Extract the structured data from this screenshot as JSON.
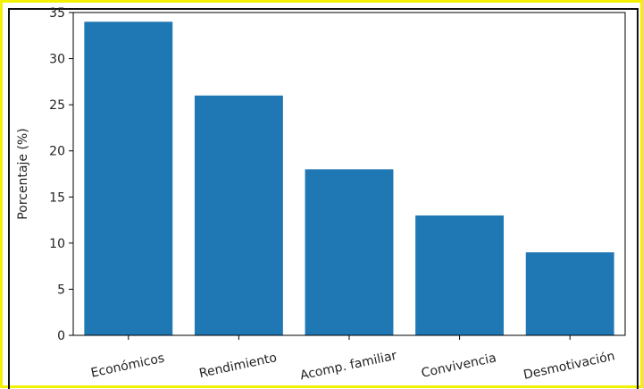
{
  "chart_data": {
    "type": "bar",
    "categories": [
      "Económicos",
      "Rendimiento",
      "Acomp. familiar",
      "Convivencia",
      "Desmotivación"
    ],
    "values": [
      34,
      26,
      18,
      13,
      9
    ],
    "title": "",
    "xlabel": "",
    "ylabel": "Porcentaje (%)",
    "ylim": [
      0,
      35
    ],
    "yticks": [
      0,
      5,
      10,
      15,
      20,
      25,
      30,
      35
    ],
    "grid": false,
    "legend": "none",
    "bar_color": "#1f77b4",
    "frame_color": "#f2f200"
  }
}
